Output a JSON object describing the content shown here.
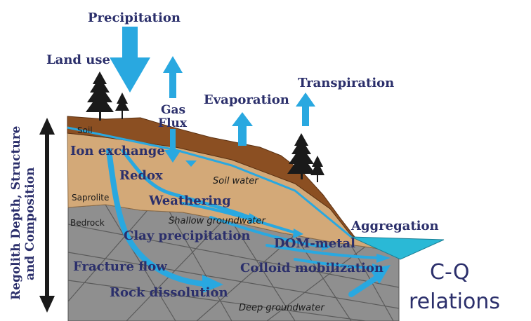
{
  "labels": {
    "precipitation": "Precipitation",
    "land_use": "Land use",
    "gas": "Gas",
    "flux": "Flux",
    "evaporation": "Evaporation",
    "transpiration": "Transpiration",
    "soil": "Soil",
    "ion_exchange": "Ion exchange",
    "redox": "Redox",
    "soil_water": "Soil water",
    "saprolite": "Saprolite",
    "weathering": "Weathering",
    "shallow_groundwater": "Shallow groundwater",
    "bedrock": "Bedrock",
    "aggregation": "Aggregation",
    "clay_precipitation": "Clay precipitation",
    "dom_metal": "DOM-metal",
    "fracture_flow": "Fracture flow",
    "colloid_mobilization": "Colloid mobilization",
    "rock_dissolution": "Rock dissolution",
    "deep_groundwater": "Deep groundwater",
    "cq_line1": "C-Q",
    "cq_line2": "relations",
    "side_line1": "Regolith Depth, Structure",
    "side_line2": "and Composition"
  },
  "colors": {
    "arrow": "#29a8e0",
    "text": "#2b2f6b",
    "soil": "#8b4f22",
    "saprolite": "#d3a978",
    "bedrock": "#8f8f8f",
    "stream": "#2ab9d6",
    "tree": "#1a1a1a"
  },
  "icons": [
    "tree-icon",
    "double-arrow-icon"
  ]
}
